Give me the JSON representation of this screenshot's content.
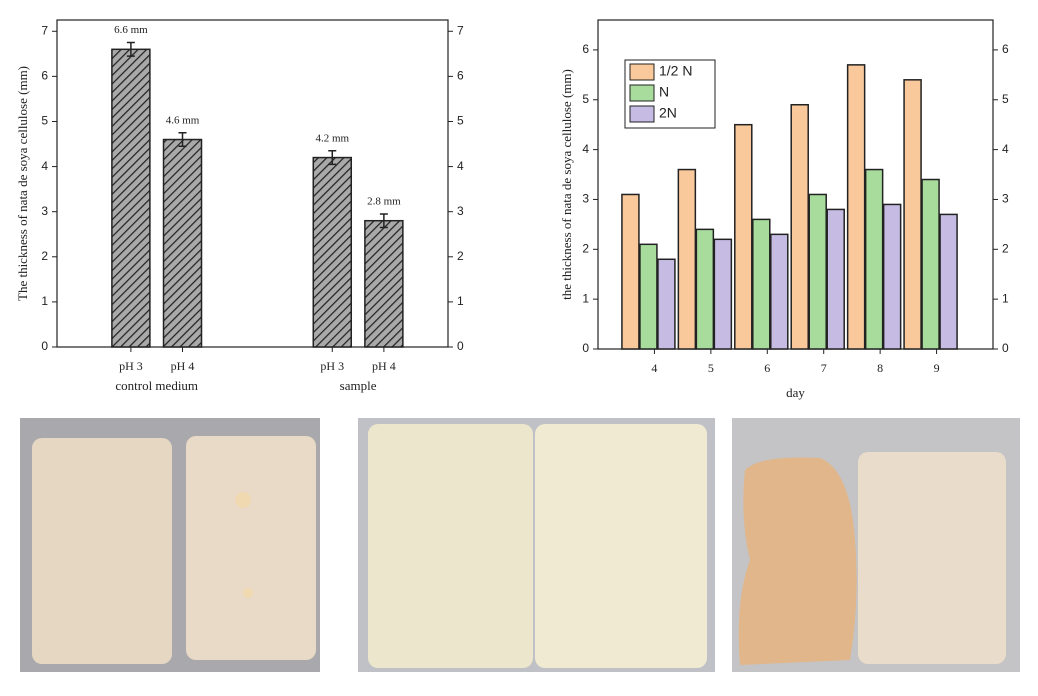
{
  "chart_data": [
    {
      "type": "bar",
      "y_label": "The thickness of nata de soya cellulose (mm)",
      "groups": [
        {
          "name": "control medium",
          "categories": [
            "pH 3",
            "pH 4"
          ],
          "values": [
            6.6,
            4.6
          ],
          "errors": [
            0.15,
            0.15
          ],
          "value_labels": [
            "6.6 mm",
            "4.6 mm"
          ]
        },
        {
          "name": "sample",
          "categories": [
            "pH 3",
            "pH 4"
          ],
          "values": [
            4.2,
            2.8
          ],
          "errors": [
            0.15,
            0.15
          ],
          "value_labels": [
            "4.2 mm",
            "2.8 mm"
          ]
        }
      ],
      "color": "#a9a9a9",
      "hatch": true,
      "ylim": [
        0,
        7.25
      ],
      "yticks": [
        0,
        1,
        2,
        3,
        4,
        5,
        6,
        7
      ],
      "mirror_y": true
    },
    {
      "type": "bar",
      "x_label": "day",
      "y_label": "the thickness of nata de soya cellulose (mm)",
      "x": [
        4,
        5,
        6,
        7,
        8,
        9
      ],
      "xlim": [
        3,
        10
      ],
      "xticks": [
        4,
        5,
        6,
        7,
        8,
        9
      ],
      "series": [
        {
          "name": "1/2 N",
          "color": "#f9c89b",
          "values": [
            3.1,
            3.6,
            4.5,
            4.9,
            5.7,
            5.4
          ]
        },
        {
          "name": "N",
          "color": "#a8dc9c",
          "values": [
            2.1,
            2.4,
            2.6,
            3.1,
            3.6,
            3.4
          ]
        },
        {
          "name": "2N",
          "color": "#c6bbe2",
          "values": [
            1.8,
            2.2,
            2.3,
            2.8,
            2.9,
            2.7
          ]
        }
      ],
      "ylim": [
        0,
        6.6
      ],
      "yticks": [
        0,
        1,
        2,
        3,
        4,
        5,
        6
      ],
      "mirror_y": true,
      "legend": "upper-left"
    }
  ]
}
